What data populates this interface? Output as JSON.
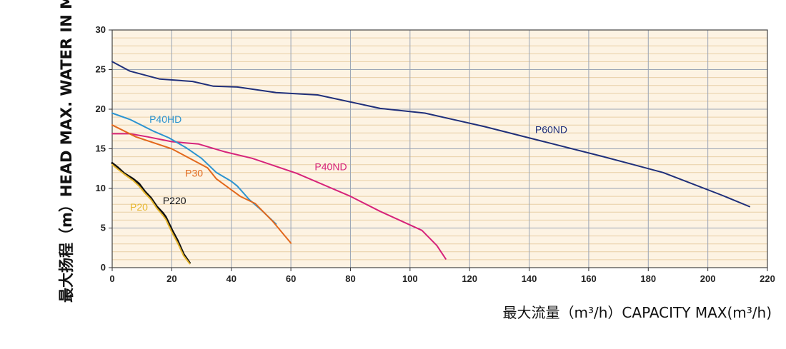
{
  "chart_data": {
    "type": "line",
    "title": "",
    "xlabel": "最大流量（m³/h）CAPACITY MAX(m³/h)",
    "ylabel": "最大扬程（m）HEAD MAX. WATER IN M",
    "xlim": [
      0,
      220
    ],
    "ylim": [
      0,
      30
    ],
    "x_ticks": [
      "0",
      "20",
      "40",
      "60",
      "80",
      "100",
      "120",
      "140",
      "160",
      "180",
      "200",
      "220"
    ],
    "y_ticks": [
      "0",
      "5",
      "10",
      "15",
      "20",
      "25",
      "30"
    ],
    "grid": true,
    "legend": "inline labels",
    "series": [
      {
        "name": "P60ND",
        "color": "#1f2f7a",
        "x": [
          0,
          6,
          16,
          27,
          34,
          42,
          55,
          69,
          90,
          105,
          125,
          145,
          165,
          185,
          205,
          214
        ],
        "y": [
          26,
          24.8,
          23.8,
          23.5,
          22.9,
          22.8,
          22.1,
          21.8,
          20.1,
          19.5,
          17.8,
          15.9,
          14.0,
          12.0,
          9.1,
          7.7
        ]
      },
      {
        "name": "P40ND",
        "color": "#d6237a",
        "x": [
          0,
          6,
          12,
          20,
          29,
          38,
          47,
          62,
          80,
          90,
          104,
          109,
          112
        ],
        "y": [
          16.9,
          16.9,
          16.5,
          15.9,
          15.6,
          14.6,
          13.8,
          11.9,
          9.0,
          7.1,
          4.7,
          2.8,
          1.1
        ]
      },
      {
        "name": "P40HD",
        "color": "#2b93d0",
        "x": [
          0,
          6,
          14,
          19,
          25,
          30,
          35,
          40,
          42,
          46,
          50,
          55
        ],
        "y": [
          19.5,
          18.7,
          17.2,
          16.4,
          15.1,
          13.8,
          12.0,
          10.9,
          10.3,
          8.6,
          7.3,
          5.5
        ]
      },
      {
        "name": "P30",
        "color": "#e2681c",
        "x": [
          0,
          8,
          20,
          32,
          35,
          43,
          48,
          54,
          60
        ],
        "y": [
          18.0,
          16.5,
          15.0,
          12.6,
          11.2,
          9.0,
          8.1,
          5.8,
          3.1
        ]
      },
      {
        "name": "P220",
        "color": "#111111",
        "x": [
          0,
          2,
          4,
          7,
          9,
          11,
          13,
          15,
          17,
          18,
          20,
          22,
          24,
          26
        ],
        "y": [
          13.2,
          12.6,
          11.9,
          11.2,
          10.6,
          9.6,
          8.8,
          7.7,
          6.9,
          6.4,
          4.8,
          3.4,
          1.7,
          0.6
        ]
      },
      {
        "name": "P20",
        "color": "#e6b62e",
        "x": [
          0,
          2,
          4,
          7,
          9,
          11,
          13,
          15,
          17,
          18,
          20,
          22,
          24,
          26
        ],
        "y": [
          13.0,
          12.4,
          11.8,
          11.0,
          10.3,
          9.4,
          8.6,
          7.5,
          6.6,
          6.1,
          4.5,
          3.1,
          1.5,
          0.5
        ]
      }
    ],
    "annotations": [
      {
        "text": "P60ND",
        "color": "#1f2f7a",
        "x": 142,
        "y": 17.0
      },
      {
        "text": "P40ND",
        "color": "#d6237a",
        "x": 68,
        "y": 12.3
      },
      {
        "text": "P40HD",
        "color": "#2b93d0",
        "x": 12.5,
        "y": 18.3
      },
      {
        "text": "P30",
        "color": "#e2681c",
        "x": 24.5,
        "y": 11.5
      },
      {
        "text": "P220",
        "color": "#111111",
        "x": 17,
        "y": 8.0
      },
      {
        "text": "P20",
        "color": "#e6b62e",
        "x": 6,
        "y": 7.2
      }
    ]
  }
}
